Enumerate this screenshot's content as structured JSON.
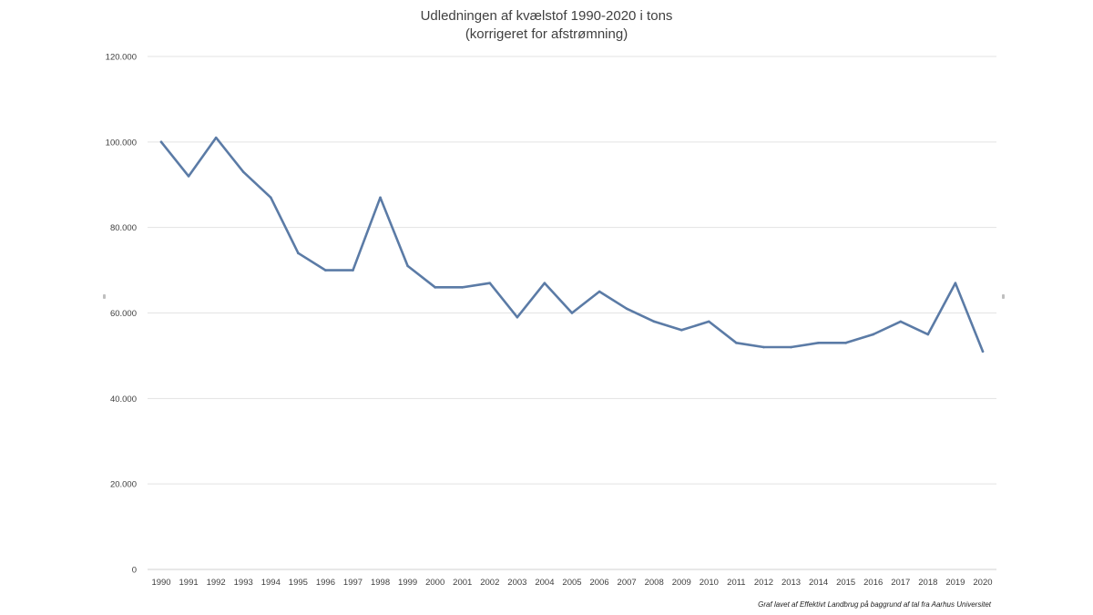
{
  "chart_data": {
    "type": "line",
    "title": "Udledningen af kvælstof 1990-2020 i tons",
    "subtitle": "(korrigeret for afstrømning)",
    "x": [
      "1990",
      "1991",
      "1992",
      "1993",
      "1994",
      "1995",
      "1996",
      "1997",
      "1998",
      "1999",
      "2000",
      "2001",
      "2002",
      "2003",
      "2004",
      "2005",
      "2006",
      "2007",
      "2008",
      "2009",
      "2010",
      "2011",
      "2012",
      "2013",
      "2014",
      "2015",
      "2016",
      "2017",
      "2018",
      "2019",
      "2020"
    ],
    "series": [
      {
        "values": [
          100000,
          92000,
          101000,
          93000,
          87000,
          74000,
          70000,
          70000,
          87000,
          71000,
          66000,
          66000,
          67000,
          59000,
          67000,
          60000,
          65000,
          61000,
          58000,
          56000,
          58000,
          53000,
          52000,
          52000,
          53000,
          53000,
          55000,
          58000,
          55000,
          67000,
          51000
        ]
      }
    ],
    "ylim": [
      0,
      120000
    ],
    "yticks": [
      0,
      20000,
      40000,
      60000,
      80000,
      100000,
      120000
    ],
    "ytick_labels": [
      "0",
      "20.000",
      "40.000",
      "60.000",
      "80.000",
      "100.000",
      "120.000"
    ],
    "grid": true,
    "line_color": "#5b7ba6",
    "grid_color": "#e3e3e3",
    "source_note": "Graf lavet af Effektivt Landbrug på baggrund af tal fra Aarhus Universitet"
  }
}
